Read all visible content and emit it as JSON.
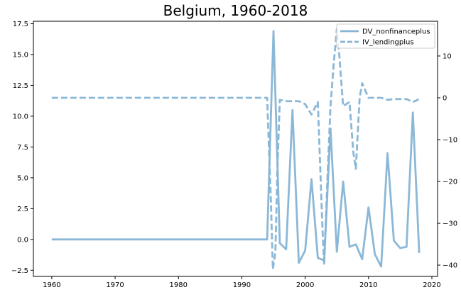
{
  "chart_data": {
    "type": "line",
    "title": "Belgium, 1960-2018",
    "legend_placement": "top-right",
    "grid": false,
    "x_axis": {
      "range": [
        1957.1,
        2020.9
      ],
      "ticks": [
        1960,
        1970,
        1980,
        1990,
        2000,
        2010,
        2020
      ],
      "tick_labels": [
        "1960",
        "1970",
        "1980",
        "1990",
        "2000",
        "2010",
        "2020"
      ]
    },
    "y_left": {
      "range": [
        -3.0,
        17.7
      ],
      "ticks": [
        -2.5,
        0.0,
        2.5,
        5.0,
        7.5,
        10.0,
        12.5,
        15.0,
        17.5
      ],
      "tick_labels": [
        "−2.5",
        "0.0",
        "2.5",
        "5.0",
        "7.5",
        "10.0",
        "12.5",
        "15.0",
        "17.5"
      ]
    },
    "y_right": {
      "range": [
        -42.7,
        18.3
      ],
      "ticks": [
        -40,
        -30,
        -20,
        -10,
        0,
        10
      ],
      "tick_labels": [
        "−40",
        "−30",
        "−20",
        "−10",
        "0",
        "10"
      ]
    },
    "series": [
      {
        "name": "DV_nonfinanceplus",
        "axis": "left",
        "style": "solid",
        "color": "#86b4d5",
        "points": [
          [
            1960,
            0
          ],
          [
            1994,
            0
          ],
          [
            1995,
            16.9
          ],
          [
            1996,
            -0.3
          ],
          [
            1997,
            -0.8
          ],
          [
            1998,
            10.5
          ],
          [
            1999,
            -1.9
          ],
          [
            2000,
            -0.9
          ],
          [
            2001,
            4.9
          ],
          [
            2002,
            -1.5
          ],
          [
            2003,
            -1.7
          ],
          [
            2004,
            9.0
          ],
          [
            2005,
            -1.0
          ],
          [
            2006,
            4.7
          ],
          [
            2007,
            -0.6
          ],
          [
            2008,
            -0.4
          ],
          [
            2009,
            -1.6
          ],
          [
            2010,
            2.6
          ],
          [
            2011,
            -1.2
          ],
          [
            2012,
            -2.2
          ],
          [
            2013,
            7.0
          ],
          [
            2014,
            -0.1
          ],
          [
            2015,
            -0.7
          ],
          [
            2016,
            -0.6
          ],
          [
            2017,
            10.3
          ],
          [
            2018,
            -1.1
          ]
        ]
      },
      {
        "name": "IV_lendingplus",
        "axis": "right",
        "style": "dashed",
        "color": "#86b4d5",
        "points": [
          [
            1960,
            0
          ],
          [
            1994,
            0
          ],
          [
            1994.6,
            -25
          ],
          [
            1994.9,
            -41
          ],
          [
            1995.3,
            -37
          ],
          [
            1995.6,
            -18
          ],
          [
            1996,
            -0.5
          ],
          [
            1997,
            -0.8
          ],
          [
            1998,
            -0.8
          ],
          [
            1999,
            -0.8
          ],
          [
            2000,
            -1.5
          ],
          [
            2001,
            -4.0
          ],
          [
            2002,
            -1.0
          ],
          [
            2002.7,
            -30
          ],
          [
            2003,
            -40
          ],
          [
            2003.5,
            -20
          ],
          [
            2004,
            -2
          ],
          [
            2004.5,
            8
          ],
          [
            2005,
            16.5
          ],
          [
            2005.4,
            10
          ],
          [
            2006,
            -2
          ],
          [
            2007,
            -1.0
          ],
          [
            2007.6,
            -13
          ],
          [
            2008,
            -17
          ],
          [
            2008.6,
            0
          ],
          [
            2009,
            3.5
          ],
          [
            2010,
            0
          ],
          [
            2011,
            0
          ],
          [
            2012,
            0
          ],
          [
            2013,
            -0.5
          ],
          [
            2014,
            -0.3
          ],
          [
            2015,
            -0.3
          ],
          [
            2016,
            -0.3
          ],
          [
            2017,
            -1.0
          ],
          [
            2018,
            -0.3
          ]
        ]
      }
    ]
  }
}
